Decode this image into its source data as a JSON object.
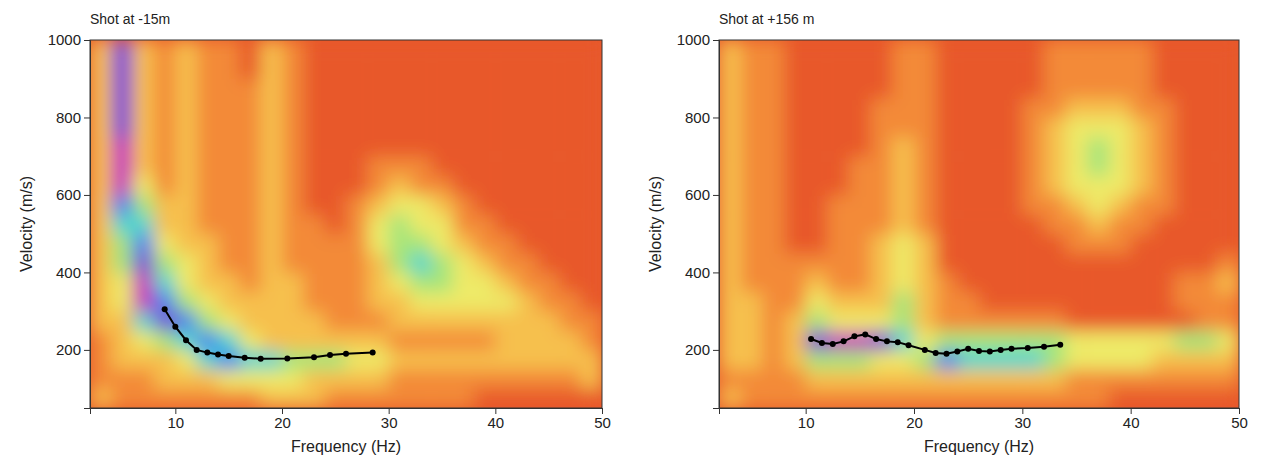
{
  "chart_data": [
    {
      "type": "heatmap",
      "title": "Shot at -15m",
      "x_label": "Frequency (Hz)",
      "y_label": "Velocity (m/s)",
      "xlim": [
        2,
        50
      ],
      "ylim": [
        50,
        1000
      ],
      "xticks": [
        10,
        20,
        30,
        40,
        50
      ],
      "yticks": [
        200,
        400,
        600,
        800,
        1000
      ],
      "x": [
        3,
        5,
        7,
        9,
        11,
        13,
        15,
        17,
        19,
        21,
        23,
        25,
        27,
        29,
        31,
        33,
        35,
        37,
        39,
        41,
        43,
        45,
        47,
        49
      ],
      "y": [
        75,
        125,
        175,
        225,
        275,
        325,
        375,
        425,
        475,
        525,
        575,
        625,
        675,
        725,
        775,
        825,
        875,
        925,
        975
      ],
      "zlim": [
        0,
        9
      ],
      "cells": [
        [
          3,
          2,
          2,
          2,
          2,
          2,
          2,
          2,
          3,
          3,
          3,
          2,
          2,
          2,
          2,
          2,
          2,
          2,
          1,
          1,
          1,
          1,
          1,
          1
        ],
        [
          2,
          2,
          2,
          3,
          3,
          3,
          4,
          4,
          4,
          4,
          3,
          3,
          3,
          3,
          2,
          2,
          2,
          2,
          2,
          2,
          2,
          2,
          2,
          3
        ],
        [
          2,
          3,
          3,
          3,
          4,
          6,
          7,
          6,
          6,
          5,
          5,
          5,
          4,
          4,
          3,
          3,
          3,
          3,
          3,
          3,
          3,
          3,
          3,
          3
        ],
        [
          2,
          3,
          4,
          5,
          6,
          7,
          6,
          4,
          3,
          3,
          3,
          3,
          3,
          3,
          2,
          2,
          2,
          2,
          2,
          3,
          3,
          3,
          3,
          2
        ],
        [
          3,
          3,
          6,
          8,
          7,
          5,
          4,
          3,
          3,
          3,
          3,
          2,
          2,
          2,
          3,
          3,
          3,
          3,
          3,
          3,
          3,
          3,
          2,
          2
        ],
        [
          3,
          4,
          9,
          7,
          5,
          4,
          3,
          3,
          3,
          3,
          2,
          2,
          2,
          3,
          3,
          4,
          4,
          4,
          4,
          4,
          3,
          2,
          2,
          1
        ],
        [
          3,
          4,
          9,
          6,
          4,
          3,
          3,
          2,
          3,
          3,
          2,
          2,
          2,
          3,
          4,
          5,
          5,
          4,
          4,
          3,
          2,
          2,
          1,
          1
        ],
        [
          3,
          5,
          8,
          5,
          4,
          3,
          2,
          2,
          3,
          2,
          2,
          2,
          2,
          3,
          5,
          6,
          5,
          4,
          3,
          2,
          2,
          1,
          1,
          1
        ],
        [
          3,
          5,
          7,
          4,
          3,
          3,
          2,
          2,
          3,
          2,
          2,
          2,
          2,
          4,
          5,
          5,
          4,
          3,
          2,
          2,
          1,
          1,
          1,
          1
        ],
        [
          3,
          6,
          6,
          3,
          3,
          2,
          2,
          2,
          3,
          2,
          2,
          1,
          2,
          4,
          5,
          4,
          4,
          2,
          2,
          1,
          1,
          1,
          1,
          1
        ],
        [
          3,
          7,
          5,
          3,
          3,
          2,
          2,
          2,
          3,
          2,
          1,
          1,
          2,
          3,
          4,
          4,
          3,
          2,
          1,
          1,
          1,
          1,
          1,
          1
        ],
        [
          3,
          9,
          4,
          2,
          3,
          2,
          2,
          2,
          3,
          2,
          1,
          1,
          1,
          2,
          3,
          2,
          2,
          1,
          1,
          1,
          1,
          1,
          1,
          1
        ],
        [
          3,
          9,
          3,
          2,
          3,
          2,
          2,
          2,
          3,
          2,
          1,
          1,
          1,
          2,
          2,
          2,
          1,
          1,
          1,
          1,
          1,
          1,
          1,
          1
        ],
        [
          3,
          9,
          3,
          2,
          3,
          2,
          2,
          2,
          3,
          2,
          1,
          1,
          1,
          1,
          1,
          1,
          1,
          1,
          1,
          1,
          1,
          1,
          1,
          1
        ],
        [
          3,
          8,
          3,
          2,
          3,
          2,
          2,
          2,
          3,
          2,
          1,
          1,
          1,
          1,
          1,
          1,
          1,
          1,
          1,
          1,
          1,
          1,
          1,
          1
        ],
        [
          3,
          8,
          3,
          2,
          3,
          2,
          2,
          2,
          3,
          2,
          1,
          1,
          1,
          1,
          1,
          1,
          1,
          1,
          1,
          1,
          1,
          1,
          1,
          1
        ],
        [
          3,
          8,
          3,
          2,
          3,
          2,
          2,
          2,
          3,
          2,
          1,
          1,
          1,
          1,
          1,
          1,
          1,
          1,
          1,
          1,
          1,
          1,
          1,
          1
        ],
        [
          3,
          8,
          3,
          2,
          3,
          2,
          2,
          1,
          3,
          2,
          1,
          1,
          1,
          1,
          1,
          1,
          1,
          1,
          1,
          1,
          1,
          1,
          1,
          1
        ],
        [
          3,
          8,
          3,
          2,
          3,
          2,
          2,
          1,
          3,
          2,
          1,
          1,
          1,
          1,
          1,
          1,
          1,
          1,
          1,
          1,
          1,
          1,
          1,
          1
        ]
      ],
      "series": [
        {
          "type": "line",
          "color": "#000000",
          "marker": "circle",
          "x": [
            9,
            10,
            11,
            12,
            13,
            14,
            15,
            16.5,
            18,
            20.5,
            23,
            24.5,
            26,
            28.5
          ],
          "values": [
            305,
            260,
            225,
            200,
            193,
            188,
            184,
            180,
            177,
            178,
            181,
            187,
            190,
            193
          ]
        }
      ]
    },
    {
      "type": "heatmap",
      "title": "Shot at +156 m",
      "x_label": "Frequency (Hz)",
      "y_label": "Velocity (m/s)",
      "xlim": [
        2,
        50
      ],
      "ylim": [
        50,
        1000
      ],
      "xticks": [
        10,
        20,
        30,
        40,
        50
      ],
      "yticks": [
        200,
        400,
        600,
        800,
        1000
      ],
      "x": [
        3,
        5,
        7,
        9,
        11,
        13,
        15,
        17,
        19,
        21,
        23,
        25,
        27,
        29,
        31,
        33,
        35,
        37,
        39,
        41,
        43,
        45,
        47,
        49
      ],
      "y": [
        75,
        125,
        175,
        225,
        275,
        325,
        375,
        425,
        475,
        525,
        575,
        625,
        675,
        725,
        775,
        825,
        875,
        925,
        975
      ],
      "zlim": [
        0,
        9
      ],
      "cells": [
        [
          3,
          2,
          2,
          2,
          2,
          2,
          2,
          2,
          2,
          2,
          2,
          2,
          2,
          2,
          2,
          2,
          2,
          2,
          1,
          1,
          1,
          1,
          1,
          1
        ],
        [
          2,
          2,
          2,
          2,
          3,
          3,
          3,
          3,
          3,
          3,
          3,
          3,
          3,
          3,
          3,
          3,
          2,
          2,
          2,
          2,
          2,
          2,
          2,
          2
        ],
        [
          3,
          3,
          2,
          3,
          5,
          5,
          5,
          4,
          4,
          5,
          7,
          6,
          6,
          6,
          6,
          5,
          4,
          4,
          4,
          4,
          3,
          3,
          3,
          3
        ],
        [
          3,
          3,
          2,
          3,
          8,
          9,
          9,
          8,
          6,
          4,
          5,
          5,
          5,
          5,
          5,
          5,
          4,
          4,
          4,
          4,
          4,
          5,
          5,
          4
        ],
        [
          3,
          3,
          2,
          3,
          5,
          4,
          4,
          4,
          5,
          3,
          2,
          2,
          2,
          2,
          2,
          2,
          1,
          1,
          1,
          1,
          1,
          1,
          2,
          2
        ],
        [
          3,
          3,
          2,
          2,
          4,
          3,
          3,
          3,
          5,
          3,
          2,
          2,
          1,
          1,
          1,
          1,
          1,
          1,
          1,
          1,
          1,
          2,
          2,
          2
        ],
        [
          3,
          2,
          2,
          2,
          3,
          2,
          2,
          3,
          4,
          3,
          2,
          1,
          1,
          1,
          1,
          1,
          1,
          1,
          1,
          1,
          1,
          2,
          2,
          3
        ],
        [
          3,
          2,
          2,
          2,
          2,
          2,
          2,
          3,
          4,
          3,
          1,
          1,
          1,
          1,
          1,
          1,
          1,
          1,
          1,
          1,
          1,
          1,
          1,
          2
        ],
        [
          3,
          2,
          2,
          1,
          1,
          2,
          2,
          3,
          4,
          3,
          1,
          1,
          1,
          1,
          1,
          1,
          2,
          2,
          2,
          1,
          1,
          1,
          1,
          1
        ],
        [
          3,
          2,
          2,
          1,
          1,
          2,
          2,
          2,
          3,
          2,
          1,
          1,
          1,
          1,
          1,
          2,
          2,
          3,
          2,
          2,
          1,
          1,
          1,
          1
        ],
        [
          3,
          2,
          2,
          1,
          1,
          2,
          2,
          2,
          3,
          2,
          1,
          1,
          1,
          1,
          2,
          2,
          3,
          4,
          3,
          2,
          2,
          1,
          1,
          1
        ],
        [
          3,
          2,
          2,
          1,
          1,
          1,
          2,
          2,
          3,
          2,
          1,
          1,
          1,
          1,
          2,
          3,
          4,
          4,
          4,
          3,
          2,
          1,
          1,
          1
        ],
        [
          3,
          2,
          2,
          1,
          1,
          1,
          2,
          2,
          3,
          2,
          1,
          1,
          1,
          1,
          2,
          3,
          4,
          5,
          4,
          3,
          2,
          1,
          1,
          1
        ],
        [
          3,
          2,
          2,
          1,
          1,
          1,
          1,
          2,
          3,
          2,
          1,
          1,
          1,
          1,
          2,
          3,
          4,
          5,
          4,
          3,
          2,
          1,
          1,
          1
        ],
        [
          3,
          2,
          2,
          1,
          1,
          1,
          1,
          2,
          2,
          2,
          1,
          1,
          1,
          1,
          2,
          3,
          4,
          4,
          4,
          3,
          2,
          1,
          1,
          1
        ],
        [
          3,
          2,
          2,
          1,
          1,
          1,
          1,
          2,
          2,
          2,
          1,
          1,
          1,
          1,
          2,
          2,
          3,
          3,
          3,
          2,
          2,
          1,
          1,
          1
        ],
        [
          3,
          2,
          2,
          1,
          1,
          1,
          1,
          1,
          2,
          2,
          1,
          1,
          1,
          1,
          1,
          2,
          2,
          2,
          2,
          2,
          1,
          1,
          1,
          1
        ],
        [
          3,
          2,
          2,
          1,
          1,
          1,
          1,
          1,
          2,
          2,
          1,
          1,
          1,
          1,
          1,
          2,
          2,
          2,
          2,
          2,
          1,
          1,
          1,
          1
        ],
        [
          3,
          2,
          2,
          1,
          1,
          1,
          1,
          1,
          2,
          2,
          1,
          1,
          1,
          1,
          1,
          2,
          2,
          2,
          2,
          2,
          1,
          1,
          1,
          1
        ]
      ],
      "series": [
        {
          "type": "line",
          "color": "#000000",
          "marker": "circle",
          "x": [
            10.5,
            11.5,
            12.5,
            13.5,
            14.5,
            15.5,
            16.5,
            17.5,
            18.5,
            19.5,
            21,
            22,
            23,
            24,
            25,
            26,
            27,
            28,
            29,
            30.5,
            32,
            33.5
          ],
          "values": [
            228,
            218,
            215,
            222,
            235,
            240,
            228,
            222,
            220,
            212,
            200,
            192,
            190,
            196,
            203,
            197,
            196,
            200,
            203,
            205,
            208,
            213
          ]
        }
      ]
    }
  ]
}
